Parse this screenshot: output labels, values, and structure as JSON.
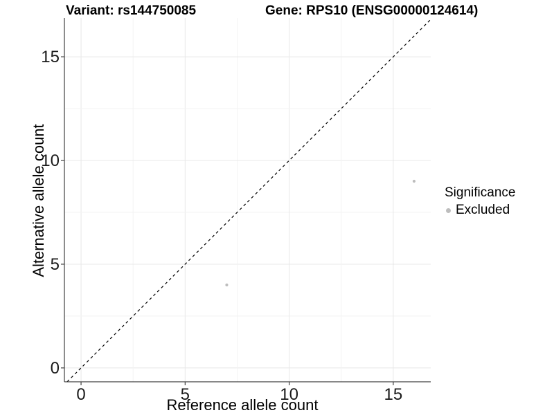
{
  "header": {
    "title_left": "Variant: rs144750085",
    "title_right": "Gene: RPS10 (ENSG00000124614)"
  },
  "chart_data": {
    "type": "scatter",
    "title": "Variant: rs144750085 — Gene: RPS10 (ENSG00000124614)",
    "xlabel": "Reference allele count",
    "ylabel": "Alternative allele count",
    "points": [
      {
        "x": 7,
        "y": 4,
        "group": "Excluded"
      },
      {
        "x": 16,
        "y": 9,
        "group": "Excluded"
      }
    ],
    "xticks": [
      0,
      5,
      10,
      15
    ],
    "yticks": [
      0,
      5,
      10,
      15
    ],
    "xlim": [
      -0.8,
      16.8
    ],
    "ylim": [
      -0.67,
      16.87
    ],
    "minor_tick_step": 2.5,
    "grid": "major+minor",
    "identity_line": {
      "slope": 1,
      "intercept": 0,
      "style": "dashed",
      "color": "#000000"
    },
    "point_color": "#bdbdbd",
    "colors": {
      "grid_major": "#e8e8e8",
      "grid_minor": "#f3f3f3",
      "axis": "#404040",
      "text": "#1a1a1a"
    },
    "legend": {
      "title": "Significance",
      "position": "right",
      "items": [
        {
          "label": "Excluded",
          "color": "#bdbdbd",
          "marker": "circle"
        }
      ]
    }
  }
}
